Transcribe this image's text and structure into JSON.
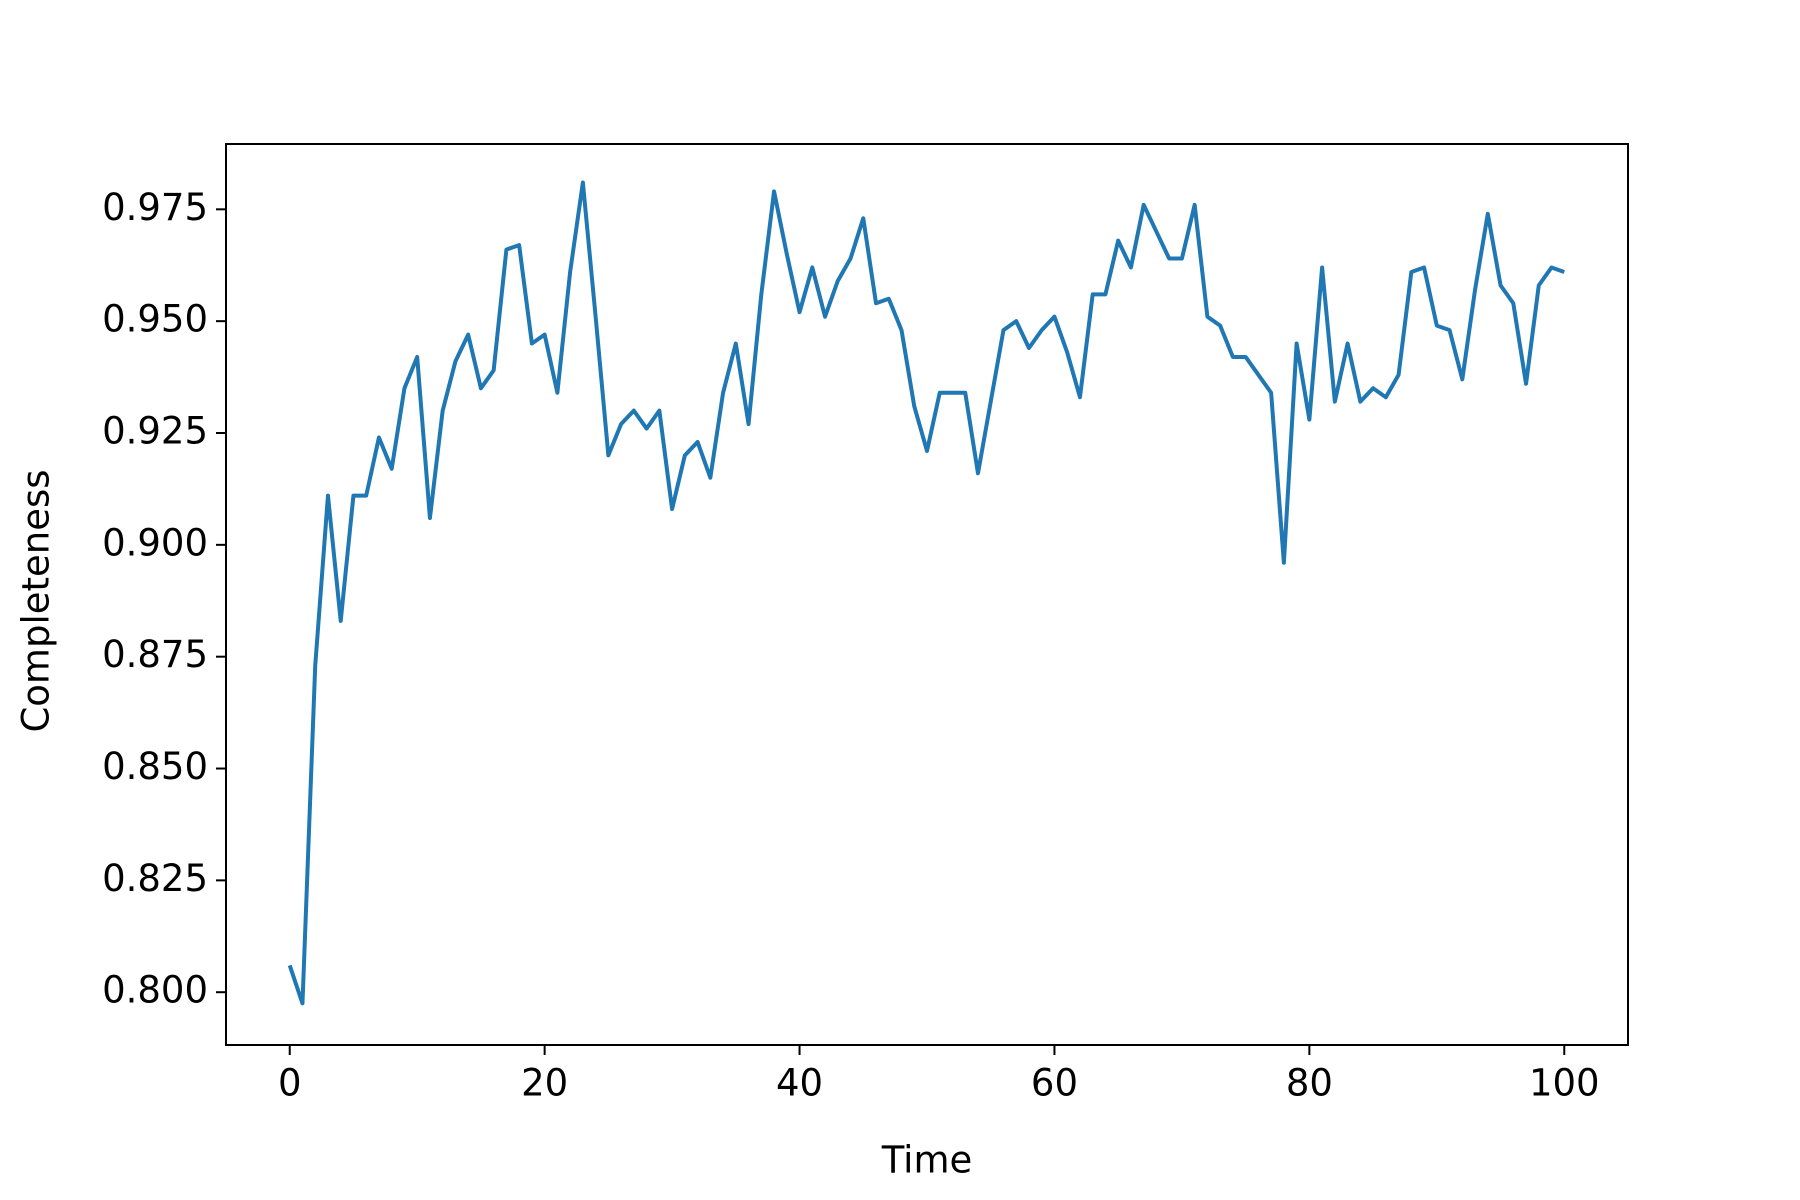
{
  "chart_data": {
    "type": "line",
    "xlabel": "Time",
    "ylabel": "Completeness",
    "x": [
      0,
      1,
      2,
      3,
      4,
      5,
      6,
      7,
      8,
      9,
      10,
      11,
      12,
      13,
      14,
      15,
      16,
      17,
      18,
      19,
      20,
      21,
      22,
      23,
      24,
      25,
      26,
      27,
      28,
      29,
      30,
      31,
      32,
      33,
      34,
      35,
      36,
      37,
      38,
      39,
      40,
      41,
      42,
      43,
      44,
      45,
      46,
      47,
      48,
      49,
      50,
      51,
      52,
      53,
      54,
      55,
      56,
      57,
      58,
      59,
      60,
      61,
      62,
      63,
      64,
      65,
      66,
      67,
      68,
      69,
      70,
      71,
      72,
      73,
      74,
      75,
      76,
      77,
      78,
      79,
      80,
      81,
      82,
      83,
      84,
      85,
      86,
      87,
      88,
      89,
      90,
      91,
      92,
      93,
      94,
      95,
      96,
      97,
      98,
      99,
      100
    ],
    "series": [
      {
        "color": "#1f77b4",
        "values": [
          0.806,
          0.7975,
          0.873,
          0.911,
          0.883,
          0.911,
          0.911,
          0.924,
          0.917,
          0.935,
          0.942,
          0.906,
          0.93,
          0.941,
          0.947,
          0.935,
          0.939,
          0.966,
          0.967,
          0.945,
          0.947,
          0.934,
          0.961,
          0.981,
          0.951,
          0.92,
          0.927,
          0.93,
          0.926,
          0.93,
          0.908,
          0.92,
          0.923,
          0.915,
          0.934,
          0.945,
          0.927,
          0.956,
          0.979,
          0.965,
          0.952,
          0.962,
          0.951,
          0.959,
          0.964,
          0.973,
          0.954,
          0.955,
          0.948,
          0.931,
          0.921,
          0.934,
          0.934,
          0.934,
          0.916,
          0.932,
          0.948,
          0.95,
          0.944,
          0.948,
          0.951,
          0.943,
          0.933,
          0.956,
          0.956,
          0.968,
          0.962,
          0.976,
          0.97,
          0.964,
          0.964,
          0.976,
          0.951,
          0.949,
          0.942,
          0.942,
          0.938,
          0.934,
          0.896,
          0.945,
          0.928,
          0.962,
          0.932,
          0.945,
          0.932,
          0.935,
          0.933,
          0.938,
          0.961,
          0.962,
          0.949,
          0.948,
          0.937,
          0.957,
          0.974,
          0.958,
          0.954,
          0.936,
          0.958,
          0.962,
          0.961
        ]
      }
    ],
    "xlim": [
      -5,
      105
    ],
    "xticks": [
      0,
      20,
      40,
      60,
      80,
      100
    ],
    "ylim": [
      0.7882,
      0.9896
    ],
    "yticks": [
      {
        "value": 0.8,
        "label": "0.800"
      },
      {
        "value": 0.825,
        "label": "0.825"
      },
      {
        "value": 0.85,
        "label": "0.850"
      },
      {
        "value": 0.875,
        "label": "0.875"
      },
      {
        "value": 0.9,
        "label": "0.900"
      },
      {
        "value": 0.925,
        "label": "0.925"
      },
      {
        "value": 0.95,
        "label": "0.950"
      },
      {
        "value": 0.975,
        "label": "0.975"
      }
    ],
    "grid": false
  }
}
